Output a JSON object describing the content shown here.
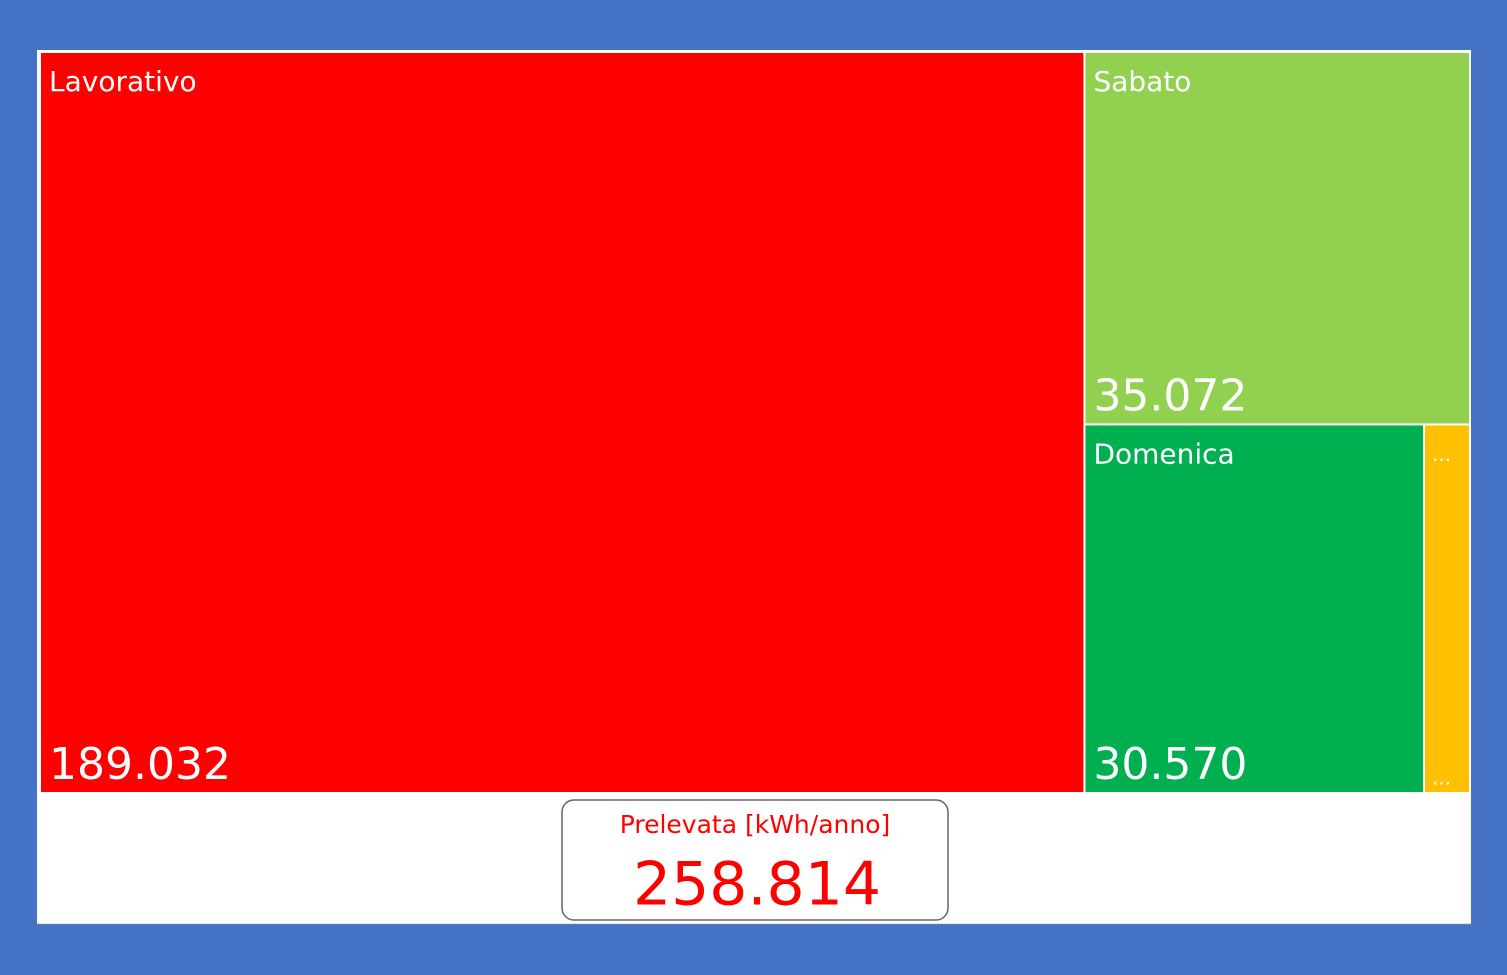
{
  "chart_data": {
    "type": "treemap",
    "categories": [
      "Lavorativo",
      "Sabato",
      "Domenica",
      "..."
    ],
    "values": [
      189032,
      35072,
      30570,
      4140
    ],
    "value_labels": [
      "189.032",
      "35.072",
      "30.570",
      "..."
    ],
    "colors": [
      "#ff0000",
      "#92d050",
      "#00b050",
      "#ffc000"
    ]
  },
  "card": {
    "title": "Prelevata [kWh/anno]",
    "value": 258814,
    "value_label": "258.814",
    "color": "#ff0000"
  }
}
